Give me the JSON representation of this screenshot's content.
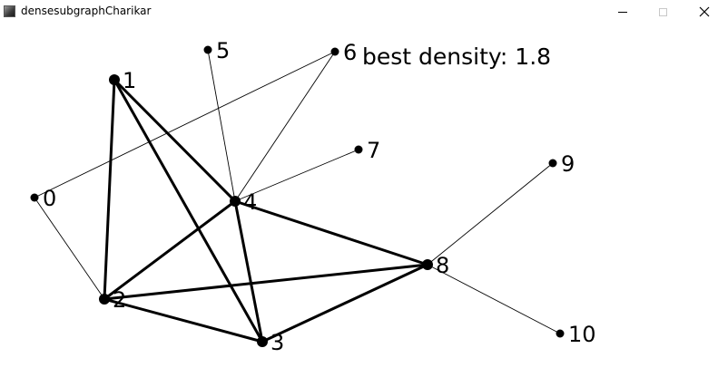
{
  "window": {
    "title": "densesubgraphCharikar",
    "icon": "app-icon",
    "controls": [
      "minimize-icon",
      "maximize-icon",
      "close-icon"
    ]
  },
  "status": {
    "label": "best density:",
    "value": "1.8"
  },
  "graph": {
    "nodes": [
      {
        "id": 0,
        "label": "0"
      },
      {
        "id": 1,
        "label": "1"
      },
      {
        "id": 2,
        "label": "2"
      },
      {
        "id": 3,
        "label": "3"
      },
      {
        "id": 4,
        "label": "4"
      },
      {
        "id": 5,
        "label": "5"
      },
      {
        "id": 6,
        "label": "6"
      },
      {
        "id": 7,
        "label": "7"
      },
      {
        "id": 8,
        "label": "8"
      },
      {
        "id": 9,
        "label": "9"
      },
      {
        "id": 10,
        "label": "10"
      }
    ],
    "edges": [
      {
        "from": 1,
        "to": 2,
        "in_best_subgraph": true
      },
      {
        "from": 1,
        "to": 3,
        "in_best_subgraph": true
      },
      {
        "from": 1,
        "to": 4,
        "in_best_subgraph": true
      },
      {
        "from": 2,
        "to": 3,
        "in_best_subgraph": true
      },
      {
        "from": 2,
        "to": 4,
        "in_best_subgraph": true
      },
      {
        "from": 2,
        "to": 8,
        "in_best_subgraph": true
      },
      {
        "from": 3,
        "to": 4,
        "in_best_subgraph": true
      },
      {
        "from": 3,
        "to": 8,
        "in_best_subgraph": true
      },
      {
        "from": 4,
        "to": 8,
        "in_best_subgraph": true
      },
      {
        "from": 0,
        "to": 2,
        "in_best_subgraph": false
      },
      {
        "from": 0,
        "to": 6,
        "in_best_subgraph": false
      },
      {
        "from": 4,
        "to": 5,
        "in_best_subgraph": false
      },
      {
        "from": 4,
        "to": 6,
        "in_best_subgraph": false
      },
      {
        "from": 4,
        "to": 7,
        "in_best_subgraph": false
      },
      {
        "from": 8,
        "to": 9,
        "in_best_subgraph": false
      },
      {
        "from": 8,
        "to": 10,
        "in_best_subgraph": false
      }
    ]
  }
}
